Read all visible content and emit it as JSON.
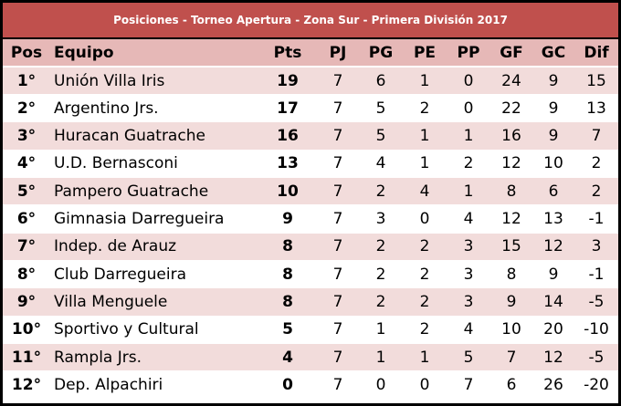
{
  "title": "Posiciones - Torneo Apertura - Zona Sur - Primera División 2017",
  "headers": {
    "pos": "Pos",
    "team": "Equipo",
    "pts": "Pts",
    "pj": "PJ",
    "pg": "PG",
    "pe": "PE",
    "pp": "PP",
    "gf": "GF",
    "gc": "GC",
    "dif": "Dif"
  },
  "colors": {
    "title_bar": "#c0504d",
    "header_row": "#e6b8b7",
    "odd_row": "#f2dcdb",
    "even_row": "#ffffff"
  },
  "rows": [
    {
      "pos": "1°",
      "team": "Unión Villa Iris",
      "pts": "19",
      "pj": "7",
      "pg": "6",
      "pe": "1",
      "pp": "0",
      "gf": "24",
      "gc": "9",
      "dif": "15"
    },
    {
      "pos": "2°",
      "team": "Argentino Jrs.",
      "pts": "17",
      "pj": "7",
      "pg": "5",
      "pe": "2",
      "pp": "0",
      "gf": "22",
      "gc": "9",
      "dif": "13"
    },
    {
      "pos": "3°",
      "team": "Huracan Guatrache",
      "pts": "16",
      "pj": "7",
      "pg": "5",
      "pe": "1",
      "pp": "1",
      "gf": "16",
      "gc": "9",
      "dif": "7"
    },
    {
      "pos": "4°",
      "team": "U.D. Bernasconi",
      "pts": "13",
      "pj": "7",
      "pg": "4",
      "pe": "1",
      "pp": "2",
      "gf": "12",
      "gc": "10",
      "dif": "2"
    },
    {
      "pos": "5°",
      "team": "Pampero Guatrache",
      "pts": "10",
      "pj": "7",
      "pg": "2",
      "pe": "4",
      "pp": "1",
      "gf": "8",
      "gc": "6",
      "dif": "2"
    },
    {
      "pos": "6°",
      "team": "Gimnasia Darregueira",
      "pts": "9",
      "pj": "7",
      "pg": "3",
      "pe": "0",
      "pp": "4",
      "gf": "12",
      "gc": "13",
      "dif": "-1"
    },
    {
      "pos": "7°",
      "team": "Indep. de Arauz",
      "pts": "8",
      "pj": "7",
      "pg": "2",
      "pe": "2",
      "pp": "3",
      "gf": "15",
      "gc": "12",
      "dif": "3"
    },
    {
      "pos": "8°",
      "team": "Club Darregueira",
      "pts": "8",
      "pj": "7",
      "pg": "2",
      "pe": "2",
      "pp": "3",
      "gf": "8",
      "gc": "9",
      "dif": "-1"
    },
    {
      "pos": "9°",
      "team": "Villa Menguele",
      "pts": "8",
      "pj": "7",
      "pg": "2",
      "pe": "2",
      "pp": "3",
      "gf": "9",
      "gc": "14",
      "dif": "-5"
    },
    {
      "pos": "10°",
      "team": "Sportivo y Cultural",
      "pts": "5",
      "pj": "7",
      "pg": "1",
      "pe": "2",
      "pp": "4",
      "gf": "10",
      "gc": "20",
      "dif": "-10"
    },
    {
      "pos": "11°",
      "team": "Rampla Jrs.",
      "pts": "4",
      "pj": "7",
      "pg": "1",
      "pe": "1",
      "pp": "5",
      "gf": "7",
      "gc": "12",
      "dif": "-5"
    },
    {
      "pos": "12°",
      "team": "Dep. Alpachiri",
      "pts": "0",
      "pj": "7",
      "pg": "0",
      "pe": "0",
      "pp": "7",
      "gf": "6",
      "gc": "26",
      "dif": "-20"
    }
  ]
}
